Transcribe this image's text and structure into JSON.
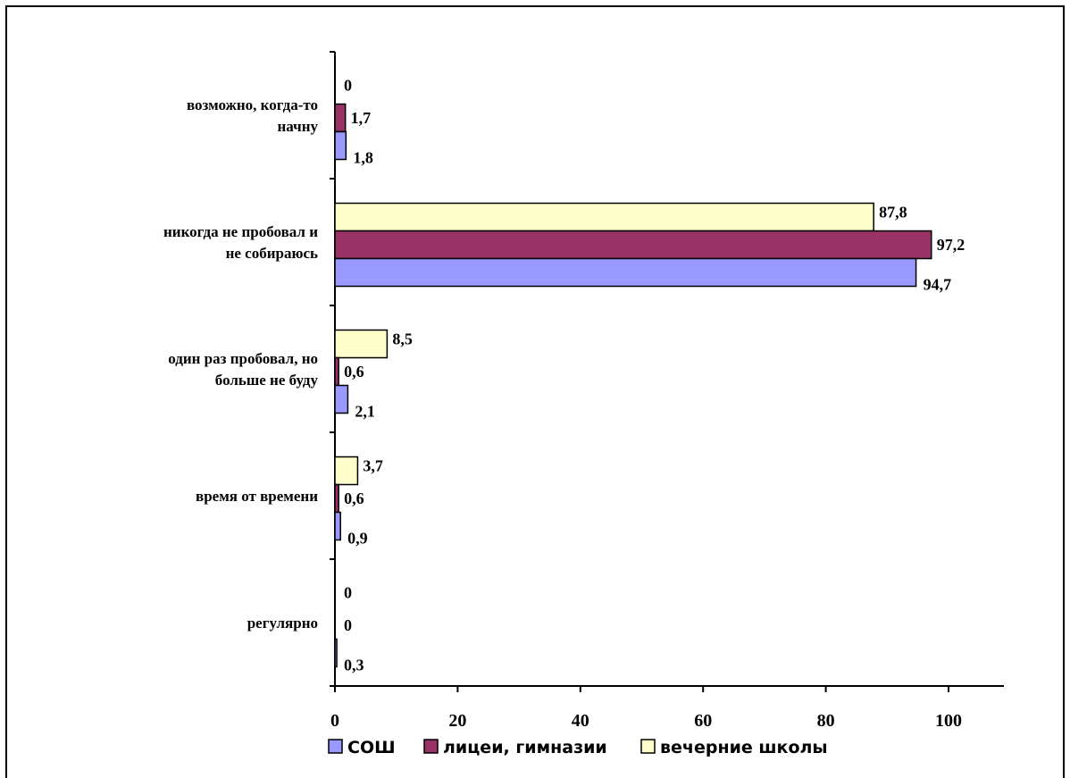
{
  "chart_data": {
    "type": "bar",
    "orientation": "horizontal",
    "categories": [
      [
        "регулярно"
      ],
      [
        "время от времени"
      ],
      [
        "один раз пробовал, но",
        "больше не буду"
      ],
      [
        "никогда не пробовал и",
        "не собираюсь"
      ],
      [
        "возможно, когда-то",
        "начну"
      ]
    ],
    "series": [
      {
        "name": "СОШ",
        "color": "#9999ff",
        "values": [
          0.3,
          0.9,
          2.1,
          94.7,
          1.8
        ],
        "labels": [
          "0,3",
          "0,9",
          "2,1",
          "94,7",
          "1,8"
        ]
      },
      {
        "name": "лицеи, гимназии",
        "color": "#993366",
        "values": [
          0,
          0.6,
          0.6,
          97.2,
          1.7
        ],
        "labels": [
          "0",
          "0,6",
          "0,6",
          "97,2",
          "1,7"
        ]
      },
      {
        "name": "вечерние школы",
        "color": "#ffffcc",
        "values": [
          0,
          3.7,
          8.5,
          87.8,
          0
        ],
        "labels": [
          "0",
          "3,7",
          "8,5",
          "87,8",
          "0"
        ]
      }
    ],
    "xticks": [
      "0",
      "20",
      "40",
      "60",
      "80",
      "100"
    ],
    "xlim": [
      0,
      109
    ],
    "grid": false,
    "legend_position": "bottom",
    "title": "",
    "xlabel": "",
    "ylabel": ""
  }
}
